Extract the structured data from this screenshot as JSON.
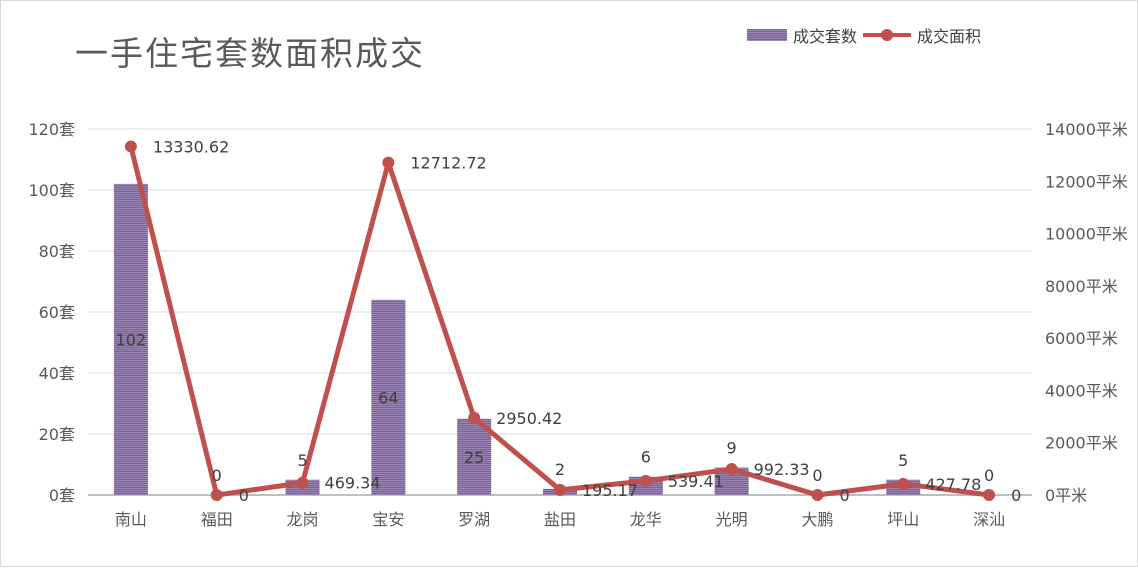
{
  "chart_data": {
    "type": "bar+line",
    "title": "一手住宅套数面积成交",
    "categories": [
      "南山",
      "福田",
      "龙岗",
      "宝安",
      "罗湖",
      "盐田",
      "龙华",
      "光明",
      "大鹏",
      "坪山",
      "深汕"
    ],
    "series": [
      {
        "name": "成交套数",
        "type": "bar",
        "axis": "left",
        "values": [
          102,
          0,
          5,
          64,
          25,
          2,
          6,
          9,
          0,
          5,
          0
        ],
        "labels": [
          "102",
          "0",
          "5",
          "64",
          "25",
          "2",
          "6",
          "9",
          "0",
          "5",
          "0"
        ]
      },
      {
        "name": "成交面积",
        "type": "line",
        "axis": "right",
        "values": [
          13330.62,
          0,
          469.34,
          12712.72,
          2950.42,
          195.17,
          539.41,
          992.33,
          0,
          427.78,
          0
        ],
        "labels": [
          "13330.62",
          "0",
          "469.34",
          "12712.72",
          "2950.42",
          "195.17",
          "539.41",
          "992.33",
          "0",
          "427.78",
          "0"
        ]
      }
    ],
    "y_left": {
      "min": 0,
      "max": 120,
      "step": 20,
      "tick_labels": [
        "0套",
        "20套",
        "40套",
        "60套",
        "80套",
        "100套",
        "120套"
      ]
    },
    "y_right": {
      "min": 0,
      "max": 14000,
      "step": 2000,
      "tick_labels": [
        "0平米",
        "2000平米",
        "4000平米",
        "6000平米",
        "8000平米",
        "10000平米",
        "12000平米",
        "14000平米"
      ]
    },
    "grid": true,
    "legend_position": "top-right",
    "colors": {
      "bar_main": "#e8364a",
      "bar_stripe": "#9b86b5",
      "line": "#c0504d",
      "grid": "#d9d9d9",
      "axis_text": "#595959"
    }
  }
}
